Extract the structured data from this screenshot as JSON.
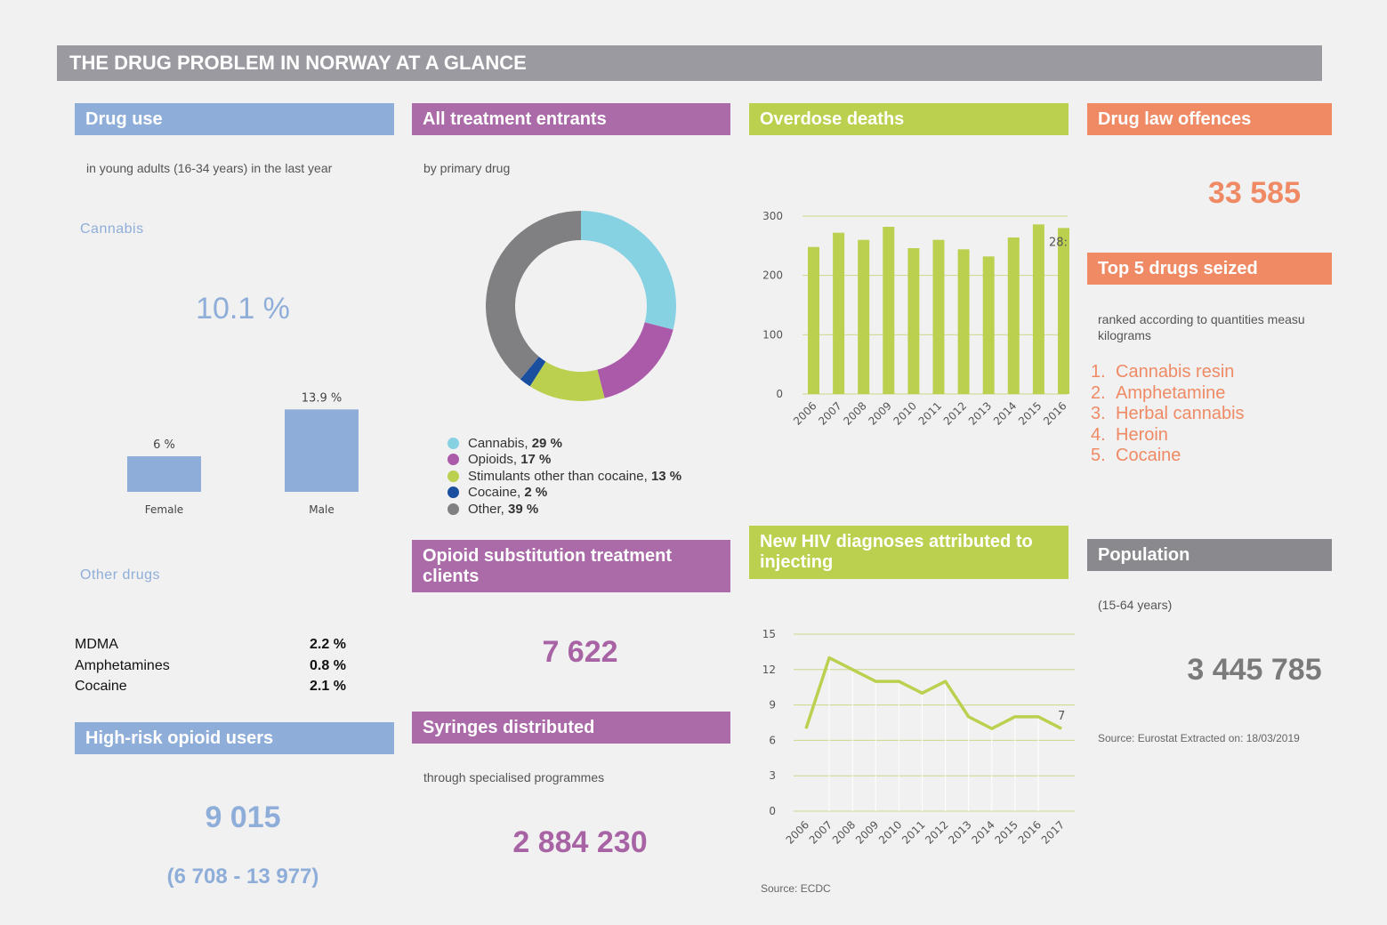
{
  "banner": "THE DRUG PROBLEM IN NORWAY AT A GLANCE",
  "drug_use": {
    "title": "Drug use",
    "subtitle": "in young adults (16-34 years) in the last year",
    "cannabis_label": "Cannabis",
    "cannabis_value": "10.1 %",
    "other_label": "Other drugs",
    "other_drugs": [
      {
        "name": "MDMA",
        "value": "2.2 %"
      },
      {
        "name": "Amphetamines",
        "value": "0.8 %"
      },
      {
        "name": "Cocaine",
        "value": "2.1 %"
      }
    ]
  },
  "high_risk": {
    "title": "High-risk opioid users",
    "value": "9 015",
    "range": "(6 708 - 13 977)"
  },
  "treatment": {
    "title": "All treatment entrants",
    "subtitle": "by primary drug"
  },
  "ost": {
    "title_line1": "Opioid substitution treatment",
    "title_line2": "clients",
    "value": "7 622"
  },
  "syringes": {
    "title": "Syringes distributed",
    "subtitle": "through specialised programmes",
    "value": "2 884 230"
  },
  "overdose": {
    "title": "Overdose deaths"
  },
  "hiv": {
    "title_line1": "New HIV diagnoses attributed to",
    "title_line2": "injecting",
    "source": "Source: ECDC"
  },
  "offences": {
    "title": "Drug law offences",
    "value": "33 585"
  },
  "seized": {
    "title": "Top 5 drugs seized",
    "subtitle_line1": "ranked according to quantities measu",
    "subtitle_line2": "kilograms",
    "items": [
      {
        "num": "1.",
        "name": "Cannabis resin"
      },
      {
        "num": "2.",
        "name": "Amphetamine"
      },
      {
        "num": "3.",
        "name": "Herbal cannabis"
      },
      {
        "num": "4.",
        "name": "Heroin"
      },
      {
        "num": "5.",
        "name": "Cocaine"
      }
    ]
  },
  "population": {
    "title": "Population",
    "subtitle": "(15-64 years)",
    "value": "3 445 785",
    "source": "Source: Eurostat Extracted on: 18/03/2019"
  },
  "colors": {
    "blue": "#8eaed9",
    "purple": "#ab6ba9",
    "green": "#bcd04f",
    "orange": "#ef8a65",
    "gray": "#8a898e"
  },
  "chart_data": [
    {
      "type": "bar",
      "categories": [
        "Female",
        "Male"
      ],
      "values": [
        6,
        13.9
      ],
      "data_labels": [
        "6 %",
        "13.9 %"
      ],
      "ylim": [
        0,
        15
      ]
    },
    {
      "type": "pie",
      "labels": [
        "Cannabis",
        "Opioids",
        "Stimulants other than cocaine",
        "Cocaine",
        "Other"
      ],
      "values": [
        29,
        17,
        13,
        2,
        39
      ],
      "value_labels": [
        "29 %",
        "17 %",
        "13 %",
        "2 %",
        "39 %"
      ],
      "colors": [
        "#86d2e2",
        "#ab5aaa",
        "#bcd04f",
        "#1a4f9f",
        "#808083"
      ]
    },
    {
      "type": "bar",
      "categories": [
        "2006",
        "2007",
        "2008",
        "2009",
        "2010",
        "2011",
        "2012",
        "2013",
        "2014",
        "2015",
        "2016"
      ],
      "values": [
        248,
        272,
        260,
        282,
        246,
        260,
        244,
        232,
        264,
        286,
        280
      ],
      "yticks": [
        0,
        100,
        200,
        300
      ],
      "ylim": [
        0,
        300
      ],
      "last_label": "28:",
      "grid": true
    },
    {
      "type": "line",
      "x": [
        "2006",
        "2007",
        "2008",
        "2009",
        "2010",
        "2011",
        "2012",
        "2013",
        "2014",
        "2015",
        "2016",
        "2017"
      ],
      "values": [
        7,
        13,
        12,
        11,
        11,
        10,
        11,
        8,
        7,
        8,
        8,
        7
      ],
      "yticks": [
        0,
        3,
        6,
        9,
        12,
        15
      ],
      "ylim": [
        0,
        15
      ],
      "last_label": "7",
      "grid": true
    }
  ]
}
